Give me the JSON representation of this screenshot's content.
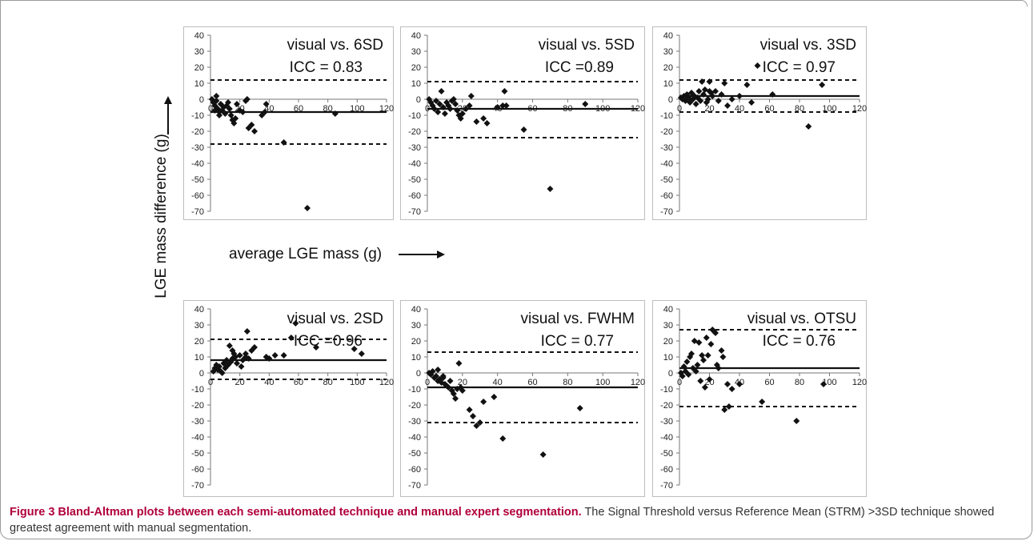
{
  "axis_label_y": "LGE mass difference (g)",
  "axis_label_x": "average LGE mass (g)",
  "caption": {
    "bold": "Figure 3 Bland-Altman plots between each semi-automated technique and manual expert segmentation.",
    "text": " The Signal Threshold versus Reference Mean (STRM) >3SD technique showed greatest agreement with manual segmentation."
  },
  "chart_data": [
    {
      "type": "scatter",
      "title": "visual vs. 6SD",
      "subtitle": "ICC = 0.83",
      "xlim": [
        0,
        120
      ],
      "ylim": [
        -70,
        40
      ],
      "xticks": [
        "0",
        "20",
        "40",
        "60",
        "80",
        "100",
        "120"
      ],
      "yticks": [
        "40",
        "30",
        "20",
        "10",
        "0",
        "-10",
        "-20",
        "-30",
        "-40",
        "-50",
        "-60",
        "-70"
      ],
      "mean": -8,
      "upper_loa": 12,
      "lower_loa": -28,
      "points": [
        [
          1,
          0
        ],
        [
          2,
          -2
        ],
        [
          3,
          -4
        ],
        [
          4,
          -1
        ],
        [
          5,
          -6
        ],
        [
          6,
          -8
        ],
        [
          7,
          -3
        ],
        [
          8,
          -7
        ],
        [
          9,
          -5
        ],
        [
          10,
          -9
        ],
        [
          11,
          -4
        ],
        [
          12,
          -2
        ],
        [
          13,
          -6
        ],
        [
          14,
          -10
        ],
        [
          15,
          -13
        ],
        [
          16,
          -15
        ],
        [
          17,
          -12
        ],
        [
          18,
          -3
        ],
        [
          20,
          -7
        ],
        [
          22,
          -8
        ],
        [
          24,
          -1
        ],
        [
          25,
          0
        ],
        [
          26,
          -18
        ],
        [
          28,
          -16
        ],
        [
          30,
          -20
        ],
        [
          35,
          -10
        ],
        [
          37,
          -8
        ],
        [
          38,
          -3
        ],
        [
          50,
          -27
        ],
        [
          66,
          -68
        ],
        [
          85,
          -9
        ],
        [
          4,
          2
        ],
        [
          6,
          -10
        ],
        [
          3,
          -7
        ]
      ]
    },
    {
      "type": "scatter",
      "title": "visual vs. 5SD",
      "subtitle": "ICC =0.89",
      "xlim": [
        0,
        120
      ],
      "ylim": [
        -70,
        40
      ],
      "xticks": [
        "0",
        "20",
        "40",
        "60",
        "80",
        "100",
        "120"
      ],
      "yticks": [
        "40",
        "30",
        "20",
        "10",
        "0",
        "-10",
        "-20",
        "-30",
        "-40",
        "-50",
        "-60",
        "-70"
      ],
      "mean": -6,
      "upper_loa": 11,
      "lower_loa": -24,
      "points": [
        [
          1,
          0
        ],
        [
          2,
          -2
        ],
        [
          3,
          -4
        ],
        [
          4,
          -6
        ],
        [
          5,
          -1
        ],
        [
          6,
          -8
        ],
        [
          7,
          -3
        ],
        [
          8,
          5
        ],
        [
          9,
          -5
        ],
        [
          10,
          -9
        ],
        [
          11,
          -2
        ],
        [
          12,
          -4
        ],
        [
          13,
          -6
        ],
        [
          14,
          -1
        ],
        [
          15,
          0
        ],
        [
          16,
          -3
        ],
        [
          17,
          -7
        ],
        [
          18,
          -10
        ],
        [
          19,
          -12
        ],
        [
          20,
          -9
        ],
        [
          22,
          -6
        ],
        [
          24,
          -4
        ],
        [
          25,
          2
        ],
        [
          28,
          -14
        ],
        [
          32,
          -12
        ],
        [
          34,
          -15
        ],
        [
          40,
          -5
        ],
        [
          43,
          -4
        ],
        [
          44,
          5
        ],
        [
          45,
          -4
        ],
        [
          55,
          -19
        ],
        [
          70,
          -56
        ],
        [
          90,
          -3
        ]
      ]
    },
    {
      "type": "scatter",
      "title": "visual vs. 3SD",
      "subtitle": "ICC = 0.97",
      "xlim": [
        0,
        120
      ],
      "ylim": [
        -70,
        40
      ],
      "xticks": [
        "0",
        "20",
        "40",
        "60",
        "80",
        "100",
        "120"
      ],
      "yticks": [
        "40",
        "30",
        "20",
        "10",
        "0",
        "-10",
        "-20",
        "-30",
        "-40",
        "-50",
        "-60",
        "-70"
      ],
      "mean": 2,
      "upper_loa": 12,
      "lower_loa": -8,
      "points": [
        [
          1,
          1
        ],
        [
          2,
          0
        ],
        [
          3,
          2
        ],
        [
          4,
          -1
        ],
        [
          5,
          3
        ],
        [
          6,
          1
        ],
        [
          7,
          -2
        ],
        [
          8,
          4
        ],
        [
          9,
          0
        ],
        [
          10,
          2
        ],
        [
          11,
          -3
        ],
        [
          12,
          1
        ],
        [
          13,
          5
        ],
        [
          14,
          -1
        ],
        [
          15,
          11
        ],
        [
          16,
          3
        ],
        [
          17,
          6
        ],
        [
          18,
          -2
        ],
        [
          19,
          0
        ],
        [
          20,
          11
        ],
        [
          21,
          4
        ],
        [
          22,
          2
        ],
        [
          24,
          5
        ],
        [
          26,
          -1
        ],
        [
          28,
          3
        ],
        [
          30,
          10
        ],
        [
          32,
          -4
        ],
        [
          35,
          0
        ],
        [
          40,
          2
        ],
        [
          45,
          9
        ],
        [
          48,
          -2
        ],
        [
          52,
          21
        ],
        [
          62,
          3
        ],
        [
          86,
          -17
        ],
        [
          95,
          9
        ],
        [
          20,
          5
        ]
      ]
    },
    {
      "type": "scatter",
      "title": "visual vs. 2SD",
      "subtitle": "ICC =0.96",
      "xlim": [
        0,
        120
      ],
      "ylim": [
        -70,
        40
      ],
      "xticks": [
        "0",
        "20",
        "40",
        "60",
        "80",
        "100",
        "120"
      ],
      "yticks": [
        "40",
        "30",
        "20",
        "10",
        "0",
        "-10",
        "-20",
        "-30",
        "-40",
        "-50",
        "-60",
        "-70"
      ],
      "mean": 8,
      "upper_loa": 21,
      "lower_loa": -4,
      "points": [
        [
          2,
          1
        ],
        [
          3,
          3
        ],
        [
          4,
          5
        ],
        [
          5,
          2
        ],
        [
          6,
          4
        ],
        [
          7,
          1
        ],
        [
          8,
          0
        ],
        [
          9,
          6
        ],
        [
          10,
          3
        ],
        [
          11,
          8
        ],
        [
          12,
          5
        ],
        [
          13,
          17
        ],
        [
          14,
          7
        ],
        [
          15,
          9
        ],
        [
          16,
          12
        ],
        [
          17,
          10
        ],
        [
          18,
          6
        ],
        [
          20,
          11
        ],
        [
          21,
          4
        ],
        [
          22,
          8
        ],
        [
          24,
          12
        ],
        [
          25,
          26
        ],
        [
          26,
          9
        ],
        [
          28,
          14
        ],
        [
          30,
          16
        ],
        [
          38,
          10
        ],
        [
          40,
          9
        ],
        [
          44,
          11
        ],
        [
          50,
          11
        ],
        [
          55,
          22
        ],
        [
          58,
          31
        ],
        [
          72,
          16
        ],
        [
          98,
          15
        ],
        [
          103,
          12
        ],
        [
          15,
          14
        ],
        [
          24,
          10
        ]
      ]
    },
    {
      "type": "scatter",
      "title": "visual vs. FWHM",
      "subtitle": "ICC = 0.77",
      "xlim": [
        0,
        120
      ],
      "ylim": [
        -70,
        40
      ],
      "xticks": [
        "0",
        "20",
        "40",
        "60",
        "80",
        "100",
        "120"
      ],
      "yticks": [
        "40",
        "30",
        "20",
        "10",
        "0",
        "-10",
        "-20",
        "-30",
        "-40",
        "-50",
        "-60",
        "-70"
      ],
      "mean": -9,
      "upper_loa": 13,
      "lower_loa": -31,
      "points": [
        [
          1,
          0
        ],
        [
          2,
          -1
        ],
        [
          3,
          1
        ],
        [
          4,
          -3
        ],
        [
          5,
          -2
        ],
        [
          6,
          -5
        ],
        [
          7,
          -4
        ],
        [
          8,
          -6
        ],
        [
          9,
          -2
        ],
        [
          10,
          -7
        ],
        [
          11,
          -8
        ],
        [
          12,
          -9
        ],
        [
          13,
          -5
        ],
        [
          14,
          -11
        ],
        [
          15,
          -13
        ],
        [
          16,
          -16
        ],
        [
          17,
          -10
        ],
        [
          18,
          6
        ],
        [
          19,
          -9
        ],
        [
          20,
          -11
        ],
        [
          24,
          -23
        ],
        [
          26,
          -27
        ],
        [
          28,
          -33
        ],
        [
          30,
          -31
        ],
        [
          32,
          -18
        ],
        [
          38,
          -15
        ],
        [
          43,
          -41
        ],
        [
          66,
          -51
        ],
        [
          87,
          -22
        ],
        [
          6,
          2
        ],
        [
          9,
          -3
        ]
      ]
    },
    {
      "type": "scatter",
      "title": "visual vs. OTSU",
      "subtitle": "ICC = 0.76",
      "xlim": [
        0,
        120
      ],
      "ylim": [
        -70,
        40
      ],
      "xticks": [
        "0",
        "20",
        "40",
        "60",
        "80",
        "100",
        "120"
      ],
      "yticks": [
        "40",
        "30",
        "20",
        "10",
        "0",
        "-10",
        "-20",
        "-30",
        "-40",
        "-50",
        "-60",
        "-70"
      ],
      "mean": 3,
      "upper_loa": 27,
      "lower_loa": -21,
      "points": [
        [
          1,
          0
        ],
        [
          2,
          -2
        ],
        [
          3,
          4
        ],
        [
          4,
          1
        ],
        [
          5,
          7
        ],
        [
          6,
          -1
        ],
        [
          7,
          10
        ],
        [
          8,
          12
        ],
        [
          9,
          3
        ],
        [
          10,
          20
        ],
        [
          11,
          1
        ],
        [
          12,
          5
        ],
        [
          13,
          19
        ],
        [
          14,
          -5
        ],
        [
          15,
          11
        ],
        [
          16,
          8
        ],
        [
          17,
          -9
        ],
        [
          18,
          22
        ],
        [
          19,
          11
        ],
        [
          20,
          -4
        ],
        [
          21,
          18
        ],
        [
          22,
          27
        ],
        [
          23,
          26
        ],
        [
          24,
          25
        ],
        [
          25,
          5
        ],
        [
          26,
          3
        ],
        [
          28,
          14
        ],
        [
          29,
          10
        ],
        [
          30,
          -23
        ],
        [
          33,
          -21
        ],
        [
          40,
          -7
        ],
        [
          55,
          -18
        ],
        [
          78,
          -30
        ],
        [
          96,
          -7
        ],
        [
          35,
          -10
        ],
        [
          32,
          -7
        ]
      ]
    }
  ]
}
